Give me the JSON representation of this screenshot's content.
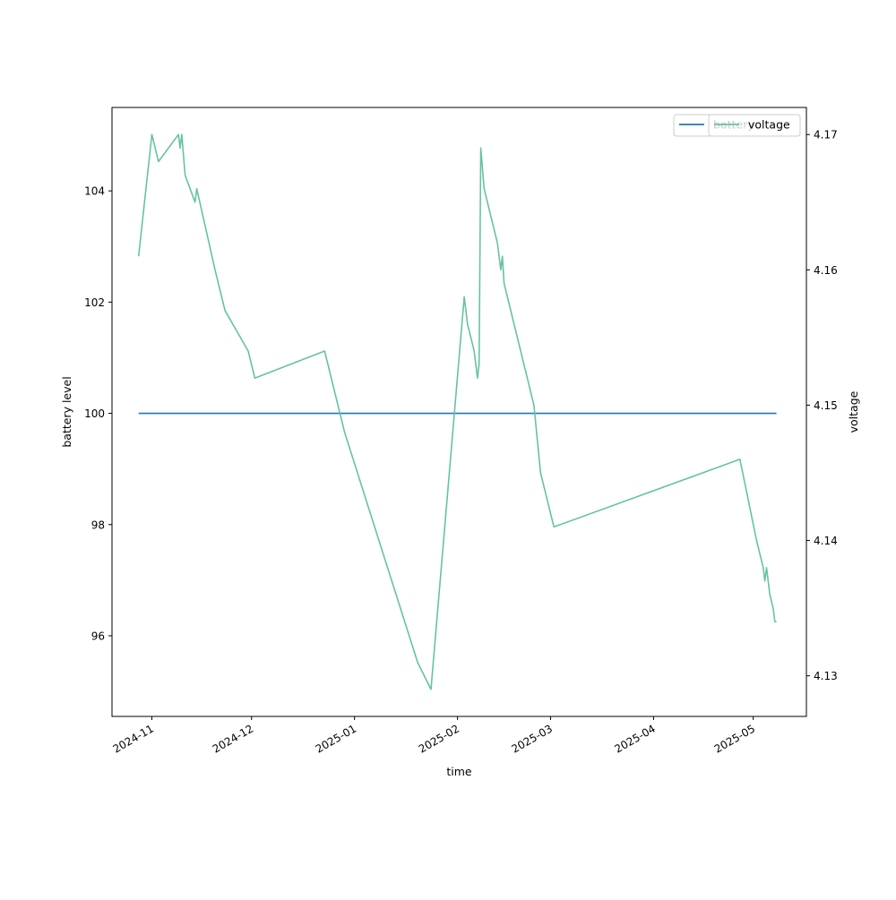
{
  "chart_data": {
    "type": "line",
    "title": "",
    "xlabel": "time",
    "ylabel_left": "battery level",
    "ylabel_right": "voltage",
    "grid": false,
    "legend_placement": "top-right",
    "x_ticks": [
      "2024-11",
      "2024-12",
      "2025-01",
      "2025-02",
      "2025-03",
      "2025-04",
      "2025-05"
    ],
    "y_left_ticks": [
      "96",
      "98",
      "100",
      "102",
      "104"
    ],
    "y_right_ticks": [
      "4.13",
      "4.14",
      "4.15",
      "4.16",
      "4.17"
    ],
    "x_range": [
      "2024-10-20",
      "2025-05-17"
    ],
    "y_left_range": [
      94.55,
      105.5
    ],
    "y_right_range": [
      4.127,
      4.172
    ],
    "series": [
      {
        "name": "battery",
        "axis": "left",
        "color": "#1f77b4",
        "points": [
          [
            "2024-10-28",
            100
          ],
          [
            "2025-05-08",
            100
          ]
        ]
      },
      {
        "name": "voltage",
        "axis": "right",
        "color": "#66c2a5",
        "points": [
          [
            "2024-10-28",
            4.161
          ],
          [
            "2024-11-01",
            4.17
          ],
          [
            "2024-11-03",
            4.168
          ],
          [
            "2024-11-09",
            4.17
          ],
          [
            "2024-11-09T12",
            4.169
          ],
          [
            "2024-11-10",
            4.17
          ],
          [
            "2024-11-11",
            4.167
          ],
          [
            "2024-11-14",
            4.165
          ],
          [
            "2024-11-14T12",
            4.166
          ],
          [
            "2024-11-20",
            4.16
          ],
          [
            "2024-11-23",
            4.157
          ],
          [
            "2024-11-30",
            4.154
          ],
          [
            "2024-12-02",
            4.152
          ],
          [
            "2024-12-23",
            4.154
          ],
          [
            "2024-12-29",
            4.148
          ],
          [
            "2025-01-20",
            4.131
          ],
          [
            "2025-01-24",
            4.129
          ],
          [
            "2025-02-03",
            4.158
          ],
          [
            "2025-02-04",
            4.156
          ],
          [
            "2025-02-06",
            4.154
          ],
          [
            "2025-02-07",
            4.152
          ],
          [
            "2025-02-07T12",
            4.153
          ],
          [
            "2025-02-08",
            4.169
          ],
          [
            "2025-02-09",
            4.166
          ],
          [
            "2025-02-11",
            4.164
          ],
          [
            "2025-02-13",
            4.162
          ],
          [
            "2025-02-14",
            4.16
          ],
          [
            "2025-02-14T12",
            4.161
          ],
          [
            "2025-02-15",
            4.159
          ],
          [
            "2025-02-24",
            4.15
          ],
          [
            "2025-02-26",
            4.145
          ],
          [
            "2025-03-02",
            4.141
          ],
          [
            "2025-04-27",
            4.146
          ],
          [
            "2025-05-02",
            4.14
          ],
          [
            "2025-05-04",
            4.138
          ],
          [
            "2025-05-04T12",
            4.137
          ],
          [
            "2025-05-05",
            4.138
          ],
          [
            "2025-05-06",
            4.136
          ],
          [
            "2025-05-07",
            4.135
          ],
          [
            "2025-05-07T12",
            4.134
          ],
          [
            "2025-05-08",
            4.134
          ]
        ]
      }
    ],
    "legend_entries": [
      "battery",
      "voltage"
    ]
  }
}
